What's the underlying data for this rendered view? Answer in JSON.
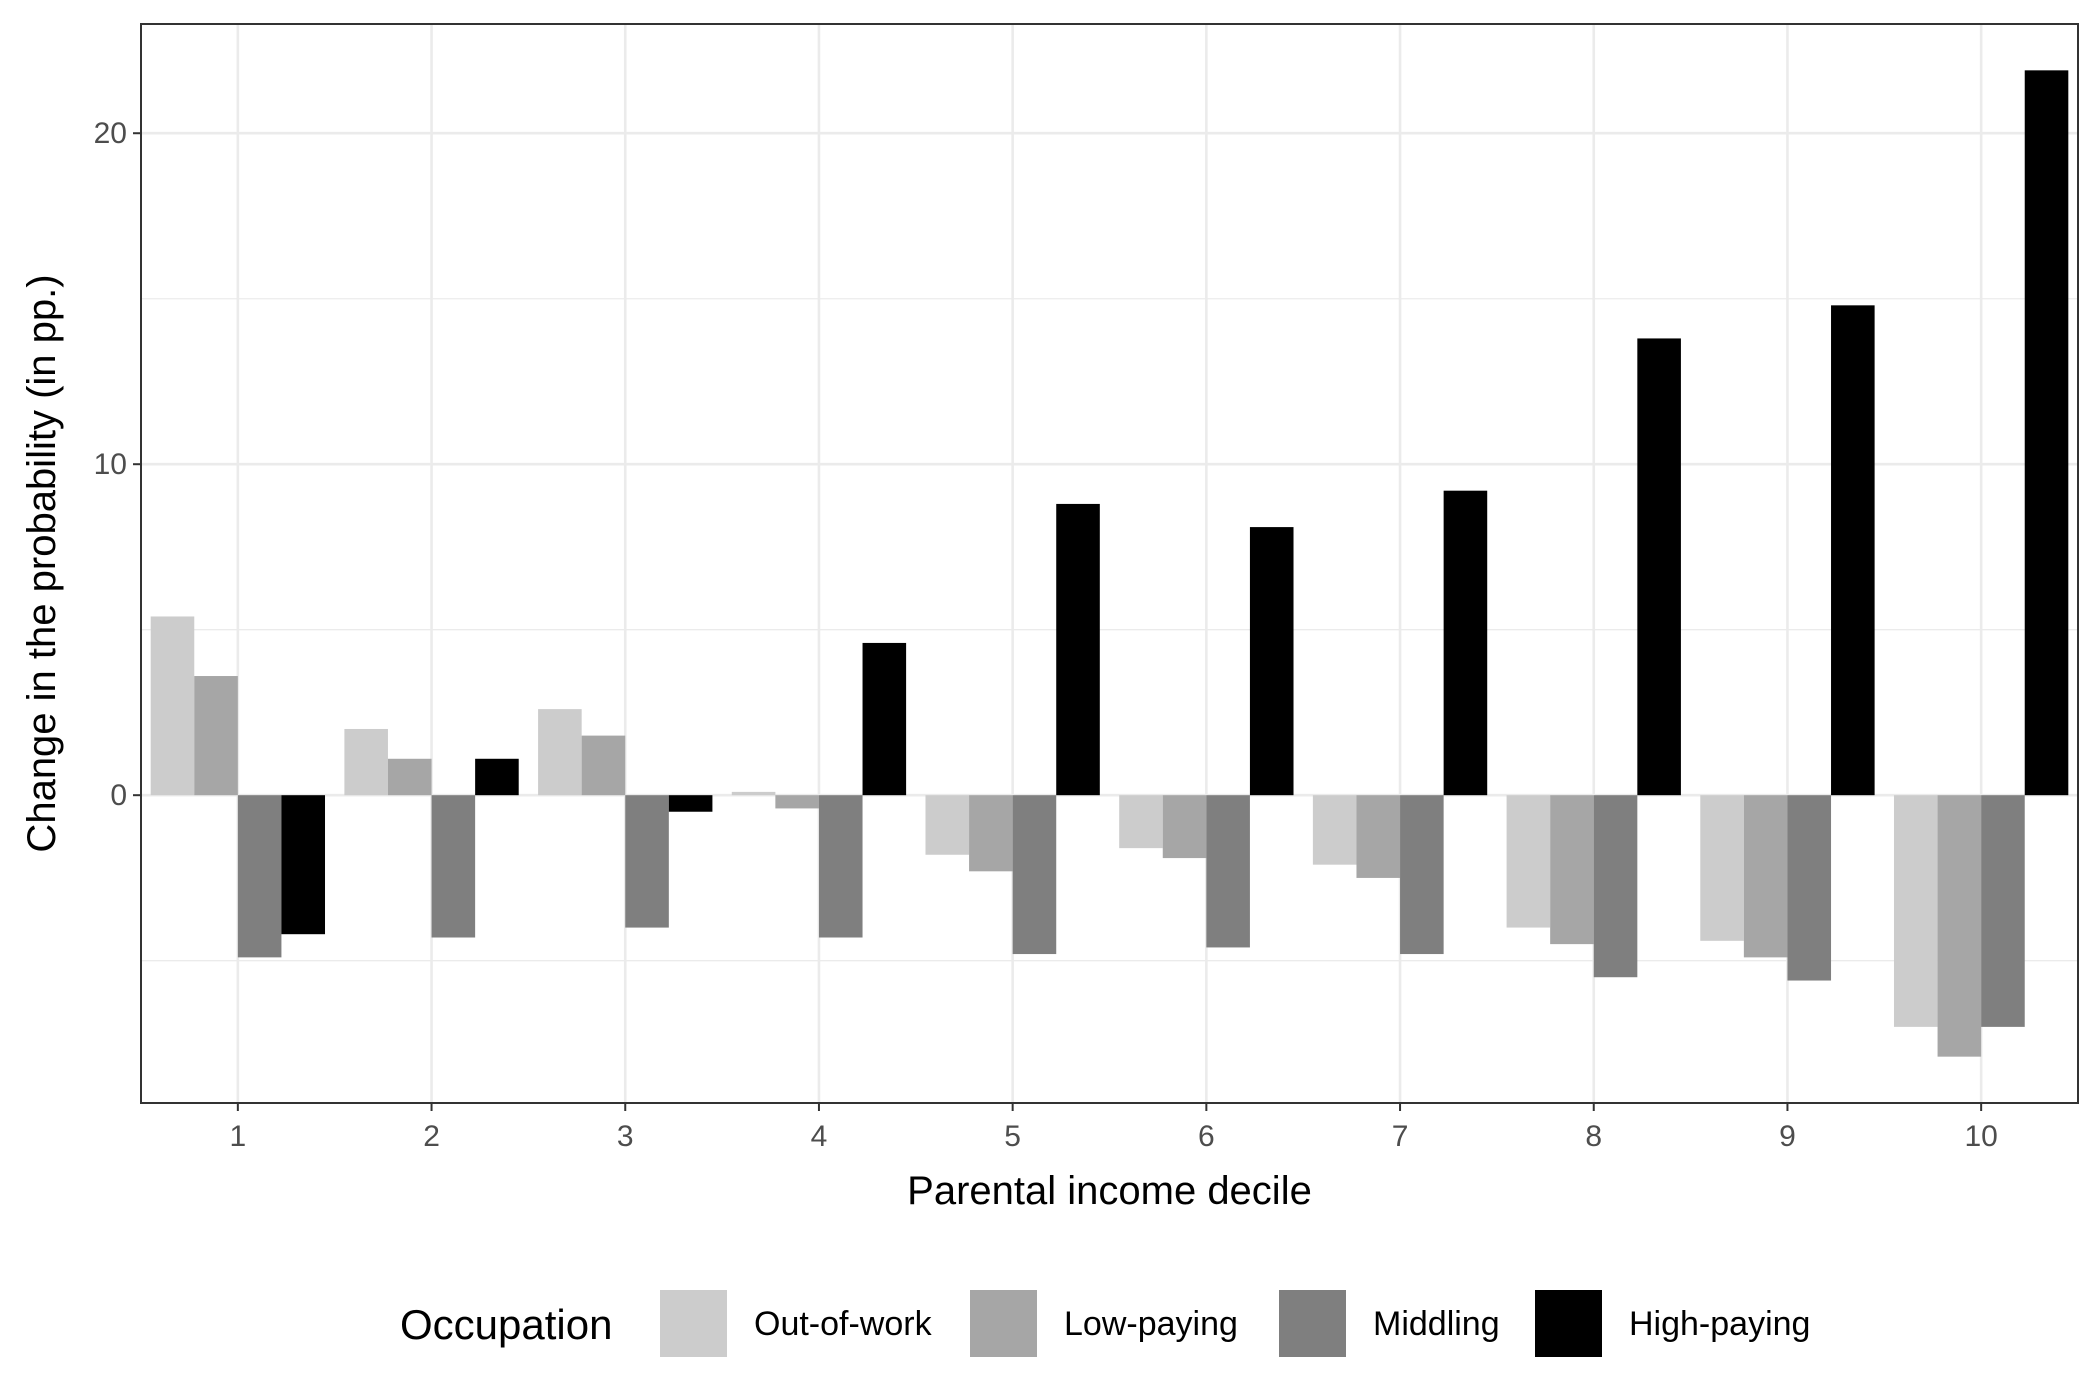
{
  "chart_data": {
    "type": "bar",
    "title": "",
    "xlabel": "Parental income decile",
    "ylabel": "Change in the probability (in pp.)",
    "categories": [
      "1",
      "2",
      "3",
      "4",
      "5",
      "6",
      "7",
      "8",
      "9",
      "10"
    ],
    "ylim": [
      -9.3,
      23.3
    ],
    "yticks": [
      0,
      10,
      20
    ],
    "grid": true,
    "legend": {
      "title": "Occupation",
      "position": "bottom"
    },
    "series": [
      {
        "name": "Out-of-work",
        "color": "#cccccc",
        "values": [
          5.4,
          2.0,
          2.6,
          0.1,
          -1.8,
          -1.6,
          -2.1,
          -4.0,
          -4.4,
          -7.0
        ]
      },
      {
        "name": "Low-paying",
        "color": "#a6a6a6",
        "values": [
          3.6,
          1.1,
          1.8,
          -0.4,
          -2.3,
          -1.9,
          -2.5,
          -4.5,
          -4.9,
          -7.9
        ]
      },
      {
        "name": "Middling",
        "color": "#7f7f7f",
        "values": [
          -4.9,
          -4.3,
          -4.0,
          -4.3,
          -4.8,
          -4.6,
          -4.8,
          -5.5,
          -5.6,
          -7.0
        ]
      },
      {
        "name": "High-paying",
        "color": "#000000",
        "values": [
          -4.2,
          1.1,
          -0.5,
          4.6,
          8.8,
          8.1,
          9.2,
          13.8,
          14.8,
          21.9
        ]
      }
    ]
  }
}
